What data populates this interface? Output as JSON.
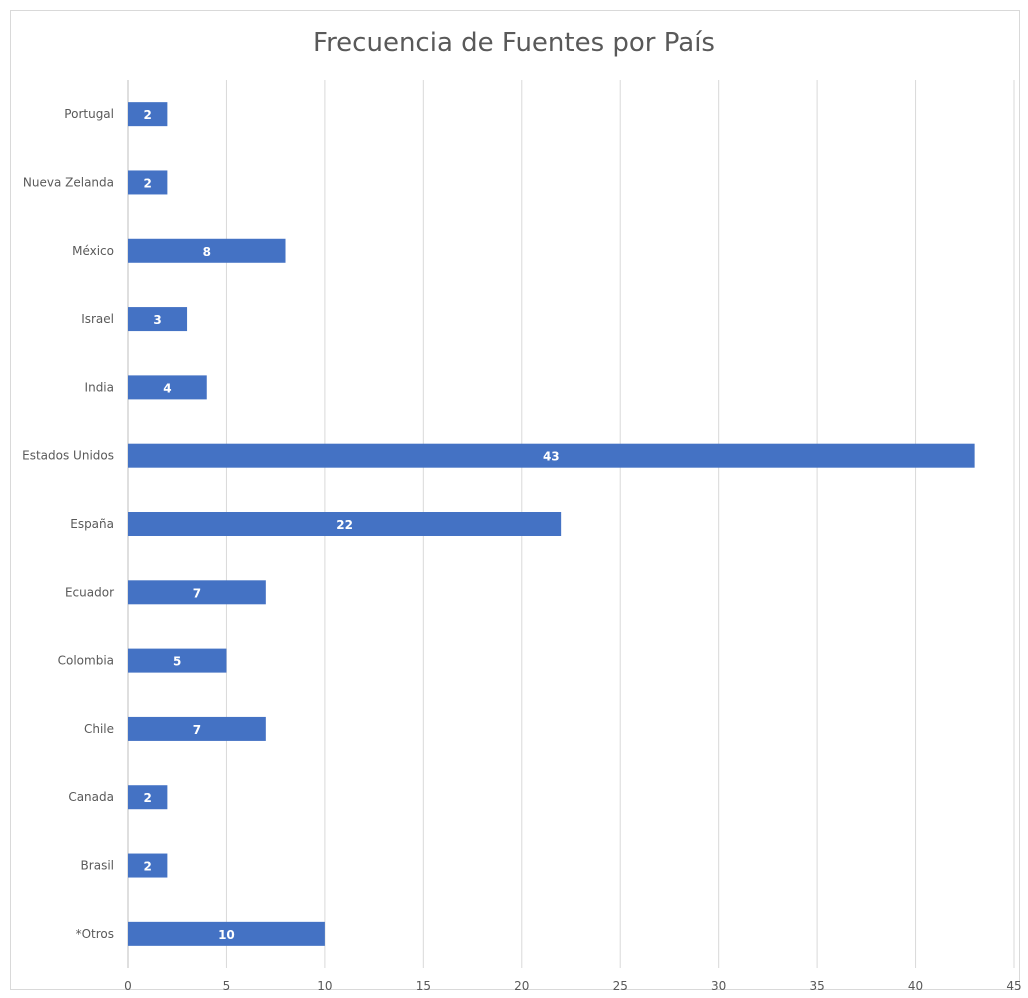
{
  "chart_data": {
    "type": "bar",
    "orientation": "horizontal",
    "title": "Frecuencia de Fuentes por País",
    "categories": [
      "Portugal",
      "Nueva Zelanda",
      "México",
      "Israel",
      "India",
      "Estados Unidos",
      "España",
      "Ecuador",
      "Colombia",
      "Chile",
      "Canada",
      "Brasil",
      "*Otros"
    ],
    "values": [
      2,
      2,
      8,
      3,
      4,
      43,
      22,
      7,
      5,
      7,
      2,
      2,
      10
    ],
    "xlim": [
      0,
      45
    ],
    "x_ticks": [
      "0",
      "5",
      "10",
      "15",
      "20",
      "25",
      "30",
      "35",
      "40",
      "45"
    ],
    "xlabel": "",
    "ylabel": "",
    "grid": "vertical",
    "data_labels": "inside-center",
    "bar_color": "#4472C4",
    "grid_color": "#d9d9d9",
    "axis_color": "#bfbfbf"
  }
}
